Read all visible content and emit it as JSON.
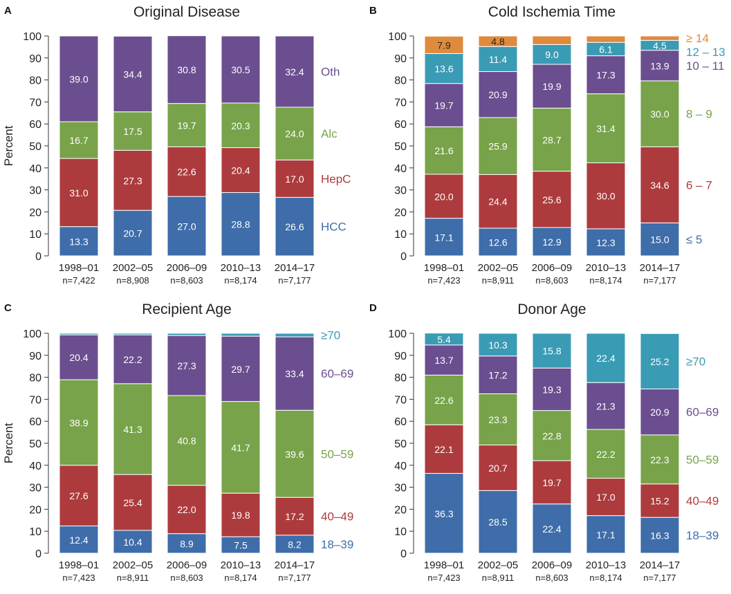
{
  "chart_data": [
    {
      "panel": "A",
      "type": "bar",
      "stacked": true,
      "title": "Original Disease",
      "ylabel": "Percent",
      "ylim": [
        0,
        100
      ],
      "yticks": [
        "0",
        "10",
        "20",
        "30",
        "40",
        "50",
        "60",
        "70",
        "80",
        "90",
        "100"
      ],
      "categories": [
        "1998–01",
        "2002–05",
        "2006–09",
        "2010–13",
        "2014–17"
      ],
      "n_labels": [
        "n=7,422",
        "n=8,908",
        "n=8,603",
        "n=8,174",
        "n=7,177"
      ],
      "series": [
        {
          "name": "HCC",
          "color": "#3E6DAA",
          "values": [
            13.3,
            20.7,
            27.0,
            28.8,
            26.6
          ],
          "labels": [
            "13.3",
            "20.7",
            "27.0",
            "28.8",
            "26.6"
          ]
        },
        {
          "name": "HepC",
          "color": "#AD3B3D",
          "values": [
            31.0,
            27.3,
            22.6,
            20.4,
            17.0
          ],
          "labels": [
            "31.0",
            "27.3",
            "22.6",
            "20.4",
            "17.0"
          ]
        },
        {
          "name": "Alc",
          "color": "#78A34A",
          "values": [
            16.7,
            17.5,
            19.7,
            20.3,
            24.0
          ],
          "labels": [
            "16.7",
            "17.5",
            "19.7",
            "20.3",
            "24.0"
          ]
        },
        {
          "name": "Oth",
          "color": "#6B4E8F",
          "values": [
            39.0,
            34.4,
            30.8,
            30.5,
            32.4
          ],
          "labels": [
            "39.0",
            "34.4",
            "30.8",
            "30.5",
            "32.4"
          ]
        }
      ]
    },
    {
      "panel": "B",
      "type": "bar",
      "stacked": true,
      "title": "Cold Ischemia Time",
      "ylabel": "",
      "ylim": [
        0,
        100
      ],
      "yticks": [
        "0",
        "10",
        "20",
        "30",
        "40",
        "50",
        "60",
        "70",
        "80",
        "90",
        "100"
      ],
      "categories": [
        "1998–01",
        "2002–05",
        "2006–09",
        "2010–13",
        "2014–17"
      ],
      "n_labels": [
        "n=7,423",
        "n=8,911",
        "n=8,603",
        "n=8,174",
        "n=7,177"
      ],
      "series": [
        {
          "name": "≤ 5",
          "color": "#3E6DAA",
          "values": [
            17.1,
            12.6,
            12.9,
            12.3,
            15.0
          ],
          "labels": [
            "17.1",
            "12.6",
            "12.9",
            "12.3",
            "15.0"
          ]
        },
        {
          "name": "6 – 7",
          "color": "#AD3B3D",
          "values": [
            20.0,
            24.4,
            25.6,
            30.0,
            34.6
          ],
          "labels": [
            "20.0",
            "24.4",
            "25.6",
            "30.0",
            "34.6"
          ]
        },
        {
          "name": "8 – 9",
          "color": "#78A34A",
          "values": [
            21.6,
            25.9,
            28.7,
            31.4,
            30.0
          ],
          "labels": [
            "21.6",
            "25.9",
            "28.7",
            "31.4",
            "30.0"
          ]
        },
        {
          "name": "10 – 11",
          "color": "#6B4E8F",
          "values": [
            19.7,
            20.9,
            19.9,
            17.3,
            13.9
          ],
          "labels": [
            "19.7",
            "20.9",
            "19.9",
            "17.3",
            "13.9"
          ]
        },
        {
          "name": "12 – 13",
          "color": "#3A9BB5",
          "values": [
            13.6,
            11.4,
            9.0,
            6.1,
            4.5
          ],
          "labels": [
            "13.6",
            "11.4",
            "9.0",
            "6.1",
            "4.5"
          ]
        },
        {
          "name": "≥ 14",
          "color": "#E08A3C",
          "values": [
            7.9,
            4.8,
            3.9,
            2.9,
            2.0
          ],
          "labels": [
            "7.9",
            "4.8",
            "",
            "",
            ""
          ]
        }
      ]
    },
    {
      "panel": "C",
      "type": "bar",
      "stacked": true,
      "title": "Recipient Age",
      "ylabel": "Percent",
      "ylim": [
        0,
        100
      ],
      "yticks": [
        "0",
        "10",
        "20",
        "30",
        "40",
        "50",
        "60",
        "70",
        "80",
        "90",
        "100"
      ],
      "categories": [
        "1998–01",
        "2002–05",
        "2006–09",
        "2010–13",
        "2014–17"
      ],
      "n_labels": [
        "n=7,423",
        "n=8,911",
        "n=8,603",
        "n=8,174",
        "n=7,177"
      ],
      "series": [
        {
          "name": "18–39",
          "color": "#3E6DAA",
          "values": [
            12.4,
            10.4,
            8.9,
            7.5,
            8.2
          ],
          "labels": [
            "12.4",
            "10.4",
            "8.9",
            "7.5",
            "8.2"
          ]
        },
        {
          "name": "40–49",
          "color": "#AD3B3D",
          "values": [
            27.6,
            25.4,
            22.0,
            19.8,
            17.2
          ],
          "labels": [
            "27.6",
            "25.4",
            "22.0",
            "19.8",
            "17.2"
          ]
        },
        {
          "name": "50–59",
          "color": "#78A34A",
          "values": [
            38.9,
            41.3,
            40.8,
            41.7,
            39.6
          ],
          "labels": [
            "38.9",
            "41.3",
            "40.8",
            "41.7",
            "39.6"
          ]
        },
        {
          "name": "60–69",
          "color": "#6B4E8F",
          "values": [
            20.4,
            22.2,
            27.3,
            29.7,
            33.4
          ],
          "labels": [
            "20.4",
            "22.2",
            "27.3",
            "29.7",
            "33.4"
          ]
        },
        {
          "name": "≥70",
          "color": "#3A9BB5",
          "values": [
            0.7,
            0.7,
            1.0,
            1.3,
            1.6
          ],
          "labels": [
            "",
            "",
            "",
            "",
            ""
          ]
        }
      ]
    },
    {
      "panel": "D",
      "type": "bar",
      "stacked": true,
      "title": "Donor Age",
      "ylabel": "",
      "ylim": [
        0,
        100
      ],
      "yticks": [
        "0",
        "10",
        "20",
        "30",
        "40",
        "50",
        "60",
        "70",
        "80",
        "90",
        "100"
      ],
      "categories": [
        "1998–01",
        "2002–05",
        "2006–09",
        "2010–13",
        "2014–17"
      ],
      "n_labels": [
        "n=7,423",
        "n=8,911",
        "n=8,603",
        "n=8,174",
        "n=7,177"
      ],
      "series": [
        {
          "name": "18–39",
          "color": "#3E6DAA",
          "values": [
            36.3,
            28.5,
            22.4,
            17.1,
            16.3
          ],
          "labels": [
            "36.3",
            "28.5",
            "22.4",
            "17.1",
            "16.3"
          ]
        },
        {
          "name": "40–49",
          "color": "#AD3B3D",
          "values": [
            22.1,
            20.7,
            19.7,
            17.0,
            15.2
          ],
          "labels": [
            "22.1",
            "20.7",
            "19.7",
            "17.0",
            "15.2"
          ]
        },
        {
          "name": "50–59",
          "color": "#78A34A",
          "values": [
            22.6,
            23.3,
            22.8,
            22.2,
            22.3
          ],
          "labels": [
            "22.6",
            "23.3",
            "22.8",
            "22.2",
            "22.3"
          ]
        },
        {
          "name": "60–69",
          "color": "#6B4E8F",
          "values": [
            13.7,
            17.2,
            19.3,
            21.3,
            20.9
          ],
          "labels": [
            "13.7",
            "17.2",
            "19.3",
            "21.3",
            "20.9"
          ]
        },
        {
          "name": "≥70",
          "color": "#3A9BB5",
          "values": [
            5.4,
            10.3,
            15.8,
            22.4,
            25.2
          ],
          "labels": [
            "5.4",
            "10.3",
            "15.8",
            "22.4",
            "25.2"
          ]
        }
      ]
    }
  ]
}
